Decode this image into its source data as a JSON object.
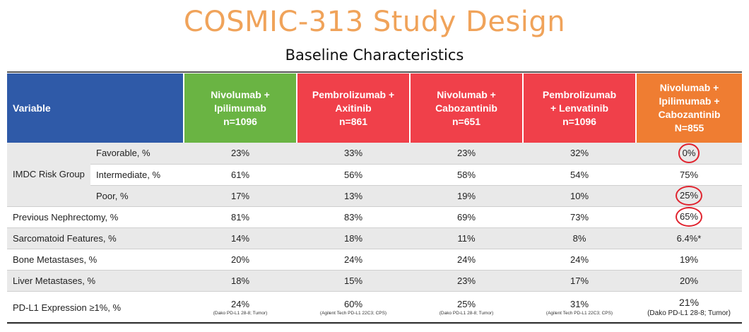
{
  "header": {
    "title": "COSMIC-313 Study Design",
    "subtitle": "Baseline Characteristics"
  },
  "colors": {
    "title": "#f0a35a",
    "variable_header": "#2f5aa8",
    "nivo_ipi": "#6ab443",
    "pembro_axi": "#f0404a",
    "nivo_cabo": "#f0404a",
    "pembro_lenva": "#f0404a",
    "triplet": "#ef7d32",
    "circle": "#e0232e"
  },
  "table": {
    "variable_header": "Variable",
    "arms": [
      {
        "lines": [
          "Nivolumab +",
          "Ipilimumab",
          "n=1096"
        ]
      },
      {
        "lines": [
          "Pembrolizumab +",
          "Axitinib",
          "n=861"
        ]
      },
      {
        "lines": [
          "Nivolumab +",
          "Cabozantinib",
          "n=651"
        ]
      },
      {
        "lines": [
          "Pembrolizumab",
          "+ Lenvatinib",
          "n=1096"
        ]
      },
      {
        "lines": [
          "Nivolumab +",
          "Ipilimumab +",
          "Cabozantinib",
          "N=855"
        ]
      }
    ],
    "imdc_group_label": "IMDC Risk Group",
    "rows": {
      "favorable": {
        "label": "Favorable, %",
        "values": [
          "23%",
          "33%",
          "23%",
          "32%",
          "0%"
        ]
      },
      "intermediate": {
        "label": "Intermediate, %",
        "values": [
          "61%",
          "56%",
          "58%",
          "54%",
          "75%"
        ]
      },
      "poor": {
        "label": "Poor, %",
        "values": [
          "17%",
          "13%",
          "19%",
          "10%",
          "25%"
        ]
      },
      "nephrectomy": {
        "label": "Previous Nephrectomy, %",
        "values": [
          "81%",
          "83%",
          "69%",
          "73%",
          "65%"
        ]
      },
      "sarcomatoid": {
        "label": "Sarcomatoid Features, %",
        "values": [
          "14%",
          "18%",
          "11%",
          "8%",
          "6.4%*"
        ]
      },
      "bone": {
        "label": "Bone Metastases, %",
        "values": [
          "20%",
          "24%",
          "24%",
          "24%",
          "19%"
        ]
      },
      "liver": {
        "label": "Liver Metastases, %",
        "values": [
          "18%",
          "15%",
          "23%",
          "17%",
          "20%"
        ]
      },
      "pdl1": {
        "label": "PD-L1 Expression ≥1%, %",
        "values": [
          "24%",
          "60%",
          "25%",
          "31%",
          "21%"
        ],
        "notes": [
          "(Dako PD-L1 28-8; Tumor)",
          "(Agilent Tech PD-L1 22C3; CPS)",
          "(Dako PD-L1 28-8; Tumor)",
          "(Agilent Tech PD-L1 22C3; CPS)",
          "(Dako PD-L1 28-8; Tumor)"
        ]
      }
    }
  }
}
